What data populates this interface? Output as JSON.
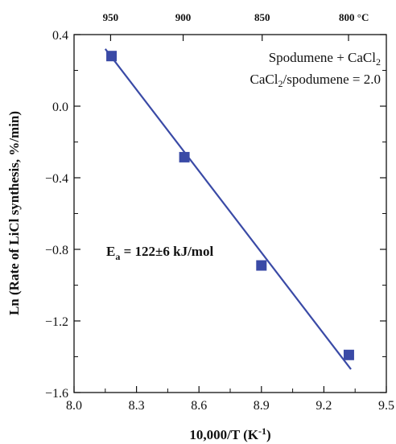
{
  "chart_data": {
    "type": "scatter",
    "xlabel": "10,000/T (K",
    "xlabel_sup": "-1",
    "xlabel_close": ")",
    "ylabel": "Ln (Rate of LiCl synthesis, %/min)",
    "xlim": [
      8.0,
      9.5
    ],
    "ylim": [
      -1.6,
      0.4
    ],
    "x_ticks": [
      "8.0",
      "8.3",
      "8.6",
      "8.9",
      "9.2",
      "9.5"
    ],
    "y_ticks": [
      "0.4",
      "0.0",
      "-0.4",
      "-0.8",
      "-1.2",
      "-1.6"
    ],
    "y_ticks_display": [
      "0.4",
      "0.0",
      "−0.4",
      "−0.8",
      "−1.2",
      "−1.6"
    ],
    "top_axis": {
      "labels": [
        "950",
        "900",
        "850",
        "800 °C"
      ],
      "temperatures_c": [
        950,
        900,
        850,
        800
      ]
    },
    "points": [
      {
        "x": 8.18,
        "y": 0.28
      },
      {
        "x": 8.53,
        "y": -0.285
      },
      {
        "x": 8.9,
        "y": -0.89
      },
      {
        "x": 9.32,
        "y": -1.39
      }
    ],
    "fit_line": {
      "x": [
        8.15,
        9.33
      ],
      "y": [
        0.32,
        -1.47
      ]
    },
    "annotations": {
      "line1": "Spodumene + CaCl",
      "line1_sub": "2",
      "line2_a": "CaCl",
      "line2_sub": "2",
      "line2_b": "/spodumene = 2.0",
      "ea_main": "E",
      "ea_sub": "a",
      "ea_rest": " = 122±6 kJ/mol"
    },
    "colors": {
      "marker": "#3a4aa6",
      "line": "#3a4aa6",
      "axis": "#111111"
    },
    "grid": false,
    "legend": "none"
  }
}
